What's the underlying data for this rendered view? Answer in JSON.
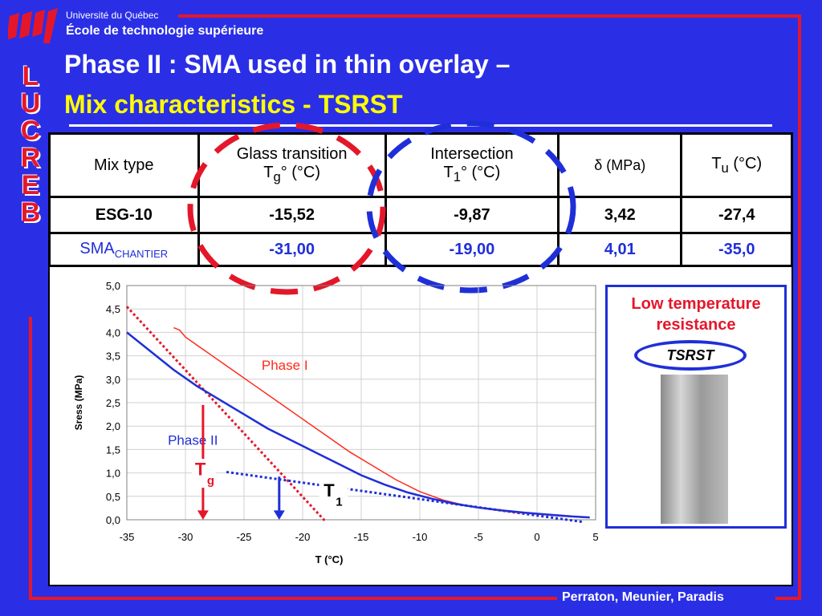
{
  "header": {
    "university": "Université du Québec",
    "school": "École de technologie supérieure",
    "logo_letters": [
      "L",
      "U",
      "C",
      "R",
      "E",
      "B"
    ]
  },
  "title": {
    "line1": "Phase II : SMA used in thin overlay –",
    "line2": "Mix characteristics - TSRST"
  },
  "table": {
    "headers": {
      "mix_type": "Mix type",
      "glass_1": "Glass transition",
      "glass_2": "T",
      "glass_sub": "g",
      "glass_3": "° (°C)",
      "inter_1": "Intersection",
      "inter_2": "T",
      "inter_sub": "1",
      "inter_3": "° (°C)",
      "delta": "δ (MPa)",
      "tu": "T",
      "tu_sub": "u",
      "tu_unit": " (°C)"
    },
    "rows": [
      {
        "mix": "ESG-10",
        "mix_sub": "",
        "tg": "-15,52",
        "t1": "-9,87",
        "delta": "3,42",
        "tu": "-27,4"
      },
      {
        "mix": "SMA",
        "mix_sub": "CHANTIER",
        "tg": "-31,00",
        "t1": "-19,00",
        "delta": "4,01",
        "tu": "-35,0"
      }
    ]
  },
  "side_panel": {
    "heading_1": "Low temperature",
    "heading_2": "resistance",
    "oval_label": "TSRST"
  },
  "footer": "Perraton, Meunier, Paradis",
  "colors": {
    "background": "#2a2fe6",
    "frame": "#e4172a",
    "title_yellow": "#ffff00",
    "phase1": "#ff2a1a",
    "phase2": "#1f2fd8"
  },
  "chart_data": {
    "type": "line",
    "xlabel": "T (°C)",
    "ylabel": "Sress (MPa)",
    "xlim": [
      -35,
      5
    ],
    "ylim": [
      0,
      5
    ],
    "x_ticks": [
      "-35",
      "-30",
      "-25",
      "-20",
      "-15",
      "-10",
      "-5",
      "0",
      "5"
    ],
    "y_ticks": [
      "0,0",
      "0,5",
      "1,0",
      "1,5",
      "2,0",
      "2,5",
      "3,0",
      "3,5",
      "4,0",
      "4,5",
      "5,0"
    ],
    "series": [
      {
        "name": "Phase I",
        "color": "#ff2a1a",
        "x": [
          -31.0,
          -30.5,
          -30,
          -28,
          -26,
          -24,
          -22,
          -20,
          -18,
          -16,
          -14,
          -12,
          -10,
          -8,
          -6,
          -4,
          -2,
          0,
          2,
          4
        ],
        "y": [
          4.1,
          4.05,
          3.9,
          3.55,
          3.2,
          2.85,
          2.5,
          2.15,
          1.8,
          1.45,
          1.15,
          0.85,
          0.6,
          0.42,
          0.3,
          0.22,
          0.16,
          0.12,
          0.08,
          0.05
        ]
      },
      {
        "name": "Phase II",
        "color": "#1f2fd8",
        "x": [
          -35,
          -33,
          -31,
          -29,
          -27,
          -25,
          -23,
          -21,
          -19,
          -17,
          -15,
          -13,
          -11,
          -9,
          -7,
          -5,
          -3,
          -1,
          1,
          3,
          4.5
        ],
        "y": [
          4.0,
          3.6,
          3.2,
          2.85,
          2.55,
          2.25,
          1.95,
          1.7,
          1.45,
          1.2,
          0.95,
          0.75,
          0.58,
          0.45,
          0.34,
          0.26,
          0.2,
          0.15,
          0.11,
          0.07,
          0.05
        ]
      }
    ],
    "annotations": {
      "tg_label": "T",
      "tg_sub": "g",
      "t1_label": "T",
      "t1_sub": "1",
      "tg_x": -28.5,
      "t1_x": -22.0,
      "tangent_red": [
        [
          -35,
          4.55
        ],
        [
          -18,
          -0.05
        ]
      ],
      "tangent_blue": [
        [
          -26.5,
          1.02
        ],
        [
          4.0,
          -0.05
        ]
      ]
    }
  }
}
